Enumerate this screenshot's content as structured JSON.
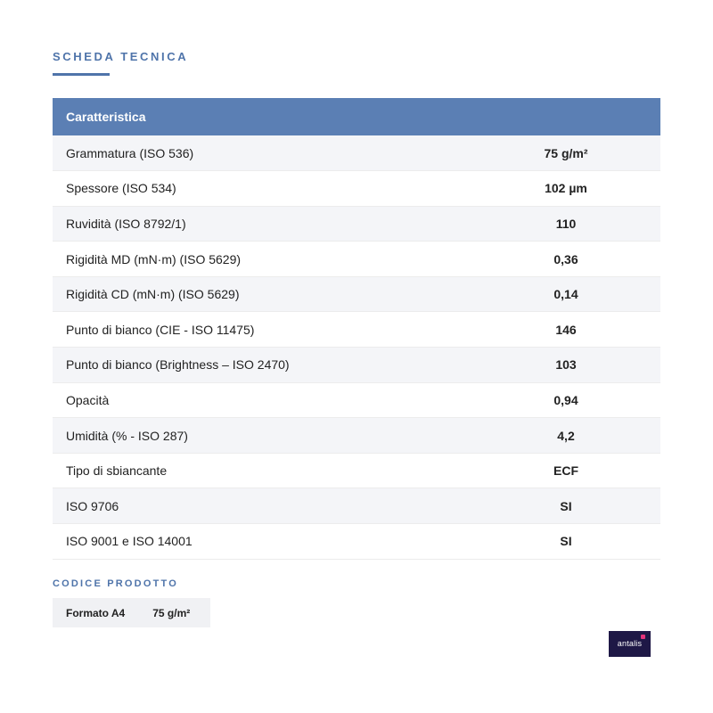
{
  "section_title": "SCHEDA TECNICA",
  "table": {
    "header": "Caratteristica",
    "rows": [
      {
        "label": "Grammatura (ISO 536)",
        "value": "75 g/m²"
      },
      {
        "label": "Spessore (ISO 534)",
        "value": "102 µm"
      },
      {
        "label": "Ruvidità (ISO 8792/1)",
        "value": "110"
      },
      {
        "label": "Rigidità MD (mN·m) (ISO 5629)",
        "value": "0,36"
      },
      {
        "label": "Rigidità CD (mN·m) (ISO 5629)",
        "value": "0,14"
      },
      {
        "label": "Punto di bianco (CIE - ISO 11475)",
        "value": "146"
      },
      {
        "label": "Punto di bianco (Brightness – ISO 2470)",
        "value": "103"
      },
      {
        "label": "Opacità",
        "value": "0,94"
      },
      {
        "label": "Umidità (% - ISO 287)",
        "value": "4,2"
      },
      {
        "label": "Tipo di sbiancante",
        "value": "ECF"
      },
      {
        "label": "ISO 9706",
        "value": "SI"
      },
      {
        "label": "ISO 9001 e ISO 14001",
        "value": "SI"
      }
    ]
  },
  "product_code": {
    "title": "CODICE PRODOTTO",
    "format": "Formato A4",
    "weight": "75 g/m²"
  },
  "logo": {
    "text": "antalis",
    "icon": "antalis-logo-icon"
  },
  "colors": {
    "accent": "#4f74aa",
    "header_bg": "#5b7fb4",
    "logo_bg": "#1e1846",
    "logo_accent": "#e5337b"
  }
}
